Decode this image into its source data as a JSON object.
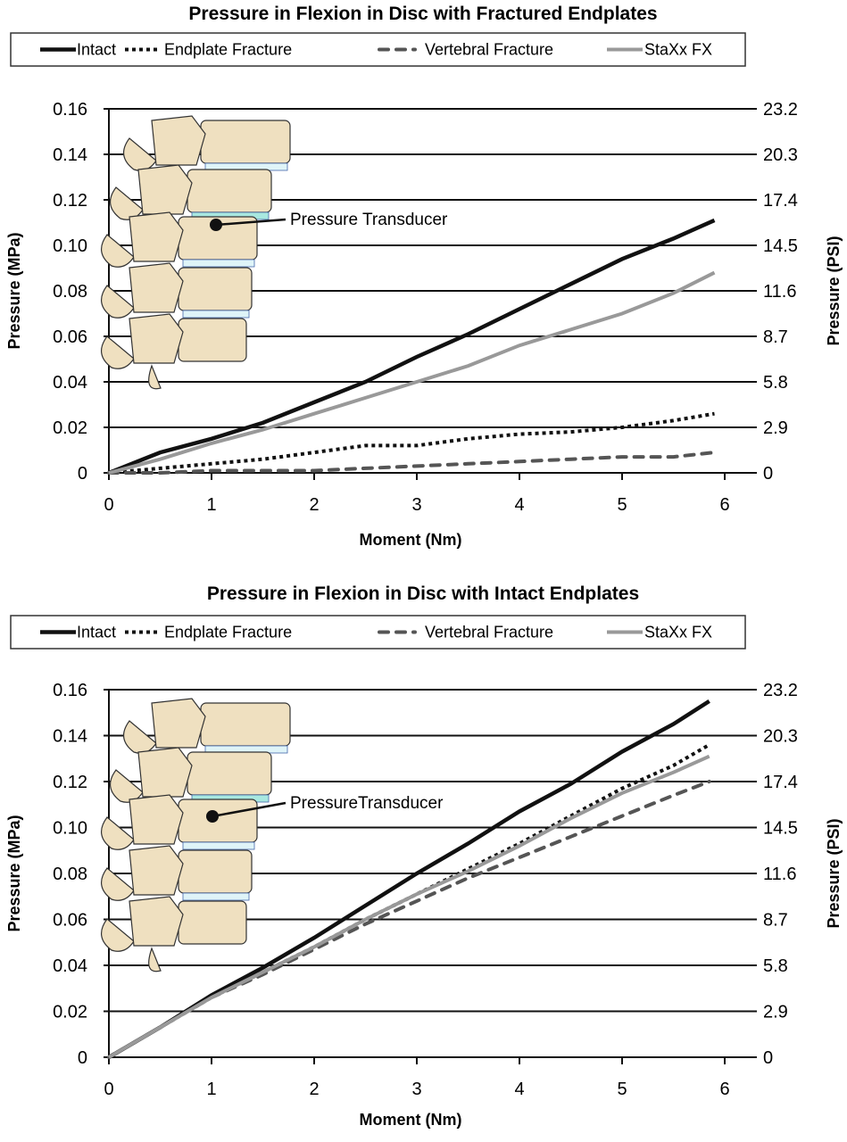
{
  "chart_data": [
    {
      "type": "line",
      "title": "Pressure in Flexion in Disc with Fractured Endplates",
      "xlabel": "Moment (Nm)",
      "ylabel": "Pressure (MPa)",
      "ylabel_right": "Pressure (PSI)",
      "xlim": [
        0,
        6
      ],
      "ylim": [
        0,
        0.16
      ],
      "x_ticks": [
        "0",
        "1",
        "2",
        "3",
        "4",
        "5",
        "6"
      ],
      "y_ticks": [
        "0",
        "0.02",
        "0.04",
        "0.06",
        "0.08",
        "0.10",
        "0.12",
        "0.14",
        "0.16"
      ],
      "y_ticks_right": [
        "0",
        "2.9",
        "5.8",
        "8.7",
        "11.6",
        "14.5",
        "17.4",
        "20.3",
        "23.2"
      ],
      "grid": true,
      "legend_position": "top",
      "annotation": "Pressure Transducer",
      "x": [
        0,
        0.5,
        1,
        1.5,
        2,
        2.5,
        3,
        3.5,
        4,
        4.5,
        5,
        5.5,
        5.9
      ],
      "series": [
        {
          "name": "Intact",
          "style": "solid-black",
          "values": [
            0,
            0.009,
            0.015,
            0.022,
            0.031,
            0.04,
            0.051,
            0.061,
            0.072,
            0.083,
            0.094,
            0.103,
            0.111
          ]
        },
        {
          "name": "Endplate Fracture",
          "style": "dotted-black",
          "values": [
            0,
            0.002,
            0.004,
            0.006,
            0.009,
            0.012,
            0.012,
            0.015,
            0.017,
            0.018,
            0.02,
            0.023,
            0.026
          ]
        },
        {
          "name": "Vertebral Fracture",
          "style": "dashed-gray",
          "values": [
            0,
            0.0,
            0.001,
            0.001,
            0.001,
            0.002,
            0.003,
            0.004,
            0.005,
            0.006,
            0.007,
            0.007,
            0.009
          ]
        },
        {
          "name": "StaXx FX",
          "style": "solid-lightgray",
          "values": [
            0,
            0.006,
            0.013,
            0.019,
            0.026,
            0.033,
            0.04,
            0.047,
            0.056,
            0.063,
            0.07,
            0.079,
            0.088
          ]
        }
      ]
    },
    {
      "type": "line",
      "title": "Pressure in Flexion in Disc with Intact Endplates",
      "xlabel": "Moment (Nm)",
      "ylabel": "Pressure (MPa)",
      "ylabel_right": "Pressure (PSI)",
      "xlim": [
        0,
        6
      ],
      "ylim": [
        0,
        0.16
      ],
      "x_ticks": [
        "0",
        "1",
        "2",
        "3",
        "4",
        "5",
        "6"
      ],
      "y_ticks": [
        "0",
        "0.02",
        "0.04",
        "0.06",
        "0.08",
        "0.10",
        "0.12",
        "0.14",
        "0.16"
      ],
      "y_ticks_right": [
        "0",
        "2.9",
        "5.8",
        "8.7",
        "11.6",
        "14.5",
        "17.4",
        "20.3",
        "23.2"
      ],
      "grid": true,
      "legend_position": "top",
      "annotation": "PressureTransducer",
      "x": [
        0,
        0.5,
        1,
        1.5,
        2,
        2.5,
        3,
        3.5,
        4,
        4.5,
        5,
        5.5,
        5.85
      ],
      "series": [
        {
          "name": "Intact",
          "style": "solid-black",
          "values": [
            0,
            0.013,
            0.027,
            0.039,
            0.052,
            0.066,
            0.08,
            0.093,
            0.107,
            0.119,
            0.133,
            0.145,
            0.155
          ]
        },
        {
          "name": "Endplate Fracture",
          "style": "dotted-black",
          "values": [
            0,
            0.013,
            0.026,
            0.037,
            0.048,
            0.06,
            0.071,
            0.082,
            0.093,
            0.105,
            0.117,
            0.127,
            0.136
          ]
        },
        {
          "name": "Vertebral Fracture",
          "style": "dashed-gray",
          "values": [
            0,
            0.013,
            0.026,
            0.036,
            0.047,
            0.058,
            0.068,
            0.078,
            0.087,
            0.096,
            0.105,
            0.114,
            0.12
          ]
        },
        {
          "name": "StaXx FX",
          "style": "solid-lightgray",
          "values": [
            0,
            0.013,
            0.026,
            0.037,
            0.048,
            0.06,
            0.071,
            0.081,
            0.092,
            0.104,
            0.115,
            0.124,
            0.131
          ]
        }
      ]
    }
  ],
  "colors": {
    "intact": "#111111",
    "endplate": "#111111",
    "vertebral": "#555555",
    "staxx": "#999999",
    "bone": "#efe0c0",
    "disc": "#a8e8e0"
  }
}
